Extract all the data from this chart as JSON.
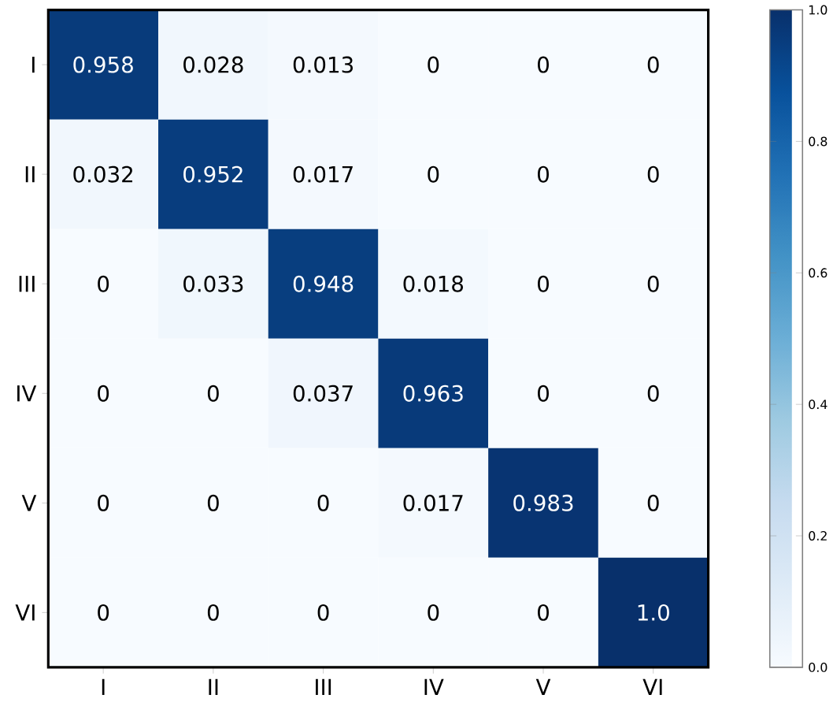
{
  "chart_data": {
    "type": "heatmap",
    "categories": [
      "I",
      "II",
      "III",
      "IV",
      "V",
      "VI"
    ],
    "y_categories": [
      "I",
      "II",
      "III",
      "IV",
      "V",
      "VI"
    ],
    "cells": [
      [
        0.958,
        0.028,
        0.013,
        0,
        0,
        0
      ],
      [
        0.032,
        0.952,
        0.017,
        0,
        0,
        0
      ],
      [
        0,
        0.033,
        0.948,
        0.018,
        0,
        0
      ],
      [
        0,
        0,
        0.037,
        0.963,
        0,
        0
      ],
      [
        0,
        0,
        0,
        0.017,
        0.983,
        0
      ],
      [
        0,
        0,
        0,
        0,
        0,
        1
      ]
    ],
    "cell_labels": [
      [
        "0.958",
        "0.028",
        "0.013",
        "0",
        "0",
        "0"
      ],
      [
        "0.032",
        "0.952",
        "0.017",
        "0",
        "0",
        "0"
      ],
      [
        "0",
        "0.033",
        "0.948",
        "0.018",
        "0",
        "0"
      ],
      [
        "0",
        "0",
        "0.037",
        "0.963",
        "0",
        "0"
      ],
      [
        "0",
        "0",
        "0",
        "0.017",
        "0.983",
        "0"
      ],
      [
        "0",
        "0",
        "0",
        "0",
        "0",
        "1.0"
      ]
    ],
    "clim": [
      0,
      1
    ],
    "cticks": [
      {
        "value": 0,
        "label": "0.0"
      },
      0.2,
      0.4,
      0.6,
      0.8,
      {
        "value": 1,
        "label": "1.0"
      }
    ]
  }
}
